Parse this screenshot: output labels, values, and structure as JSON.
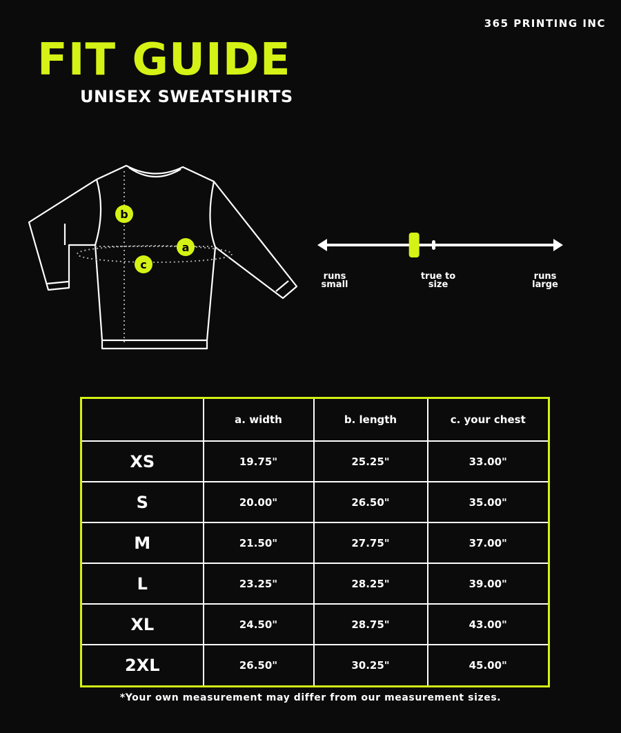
{
  "brand": "365 PRINTING INC",
  "title": "FIT GUIDE",
  "subtitle": "UNISEX SWEATSHIRTS",
  "accent_color": "#d4f215",
  "diagram": {
    "markers": [
      "a",
      "b",
      "c"
    ]
  },
  "fit_scale": {
    "labels": {
      "small": [
        "runs",
        "small"
      ],
      "true": [
        "true to",
        "size"
      ],
      "large": [
        "runs",
        "large"
      ]
    },
    "fit_position": 0.39
  },
  "table": {
    "headers": [
      "",
      "a. width",
      "b. length",
      "c. your chest"
    ],
    "rows": [
      [
        "XS",
        "19.75\"",
        "25.25\"",
        "33.00\""
      ],
      [
        "S",
        "20.00\"",
        "26.50\"",
        "35.00\""
      ],
      [
        "M",
        "21.50\"",
        "27.75\"",
        "37.00\""
      ],
      [
        "L",
        "23.25\"",
        "28.25\"",
        "39.00\""
      ],
      [
        "XL",
        "24.50\"",
        "28.75\"",
        "43.00\""
      ],
      [
        "2XL",
        "26.50\"",
        "30.25\"",
        "45.00\""
      ]
    ]
  },
  "note": "*Your own measurement may differ from our measurement sizes."
}
